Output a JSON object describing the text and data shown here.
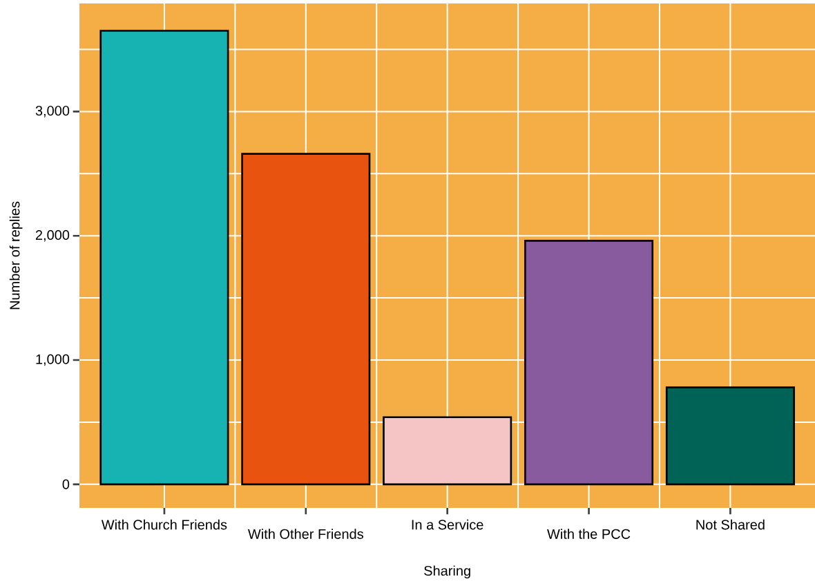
{
  "chart_data": {
    "type": "bar",
    "xlabel": "Sharing",
    "ylabel": "Number of replies",
    "categories": [
      "With Church Friends",
      "With Other Friends",
      "In a Service",
      "With the PCC",
      "Not Shared"
    ],
    "values": [
      3650,
      2660,
      540,
      1960,
      780
    ],
    "colors": [
      "#17b3b3",
      "#e8530f",
      "#f5c5c5",
      "#885a9e",
      "#006356"
    ],
    "ylim": [
      -190,
      3870
    ],
    "yticks": [
      {
        "value": 0,
        "label": "0"
      },
      {
        "value": 500,
        "label": null
      },
      {
        "value": 1000,
        "label": "1,000"
      },
      {
        "value": 1500,
        "label": null
      },
      {
        "value": 2000,
        "label": "2,000"
      },
      {
        "value": 2500,
        "label": null
      },
      {
        "value": 3000,
        "label": "3,000"
      },
      {
        "value": 3500,
        "label": null
      }
    ],
    "grid": true
  }
}
